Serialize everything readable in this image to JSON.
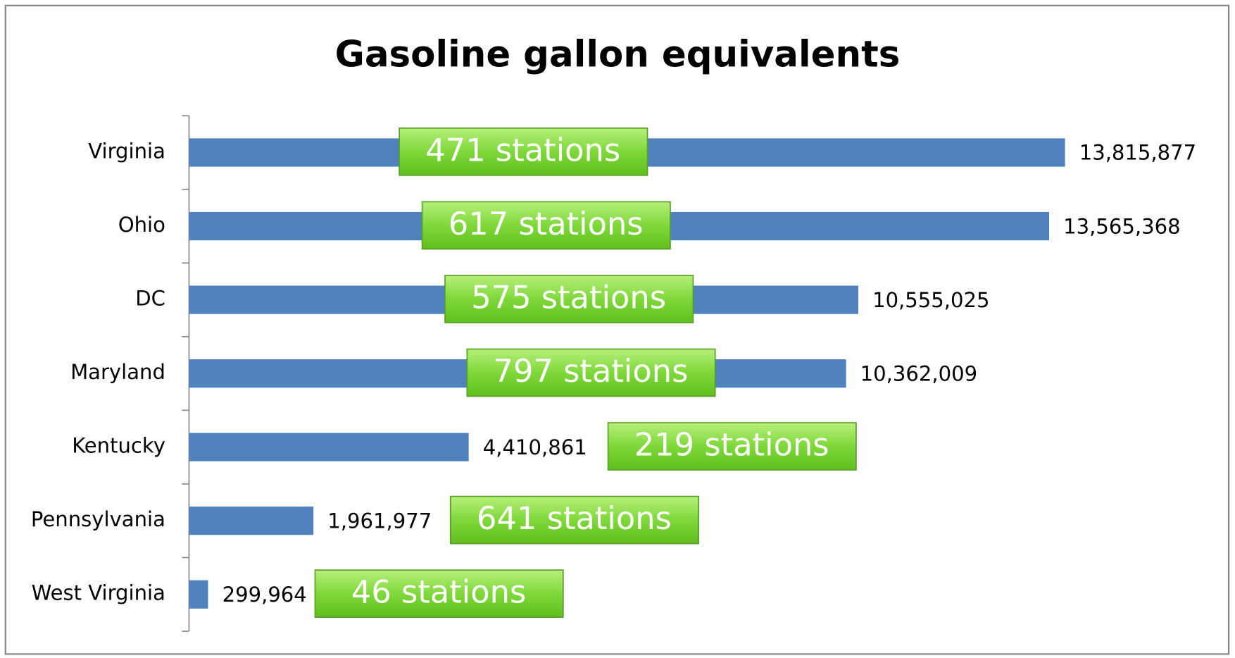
{
  "chart_data": {
    "type": "bar",
    "orientation": "horizontal",
    "title": "Gasoline gallon equivalents",
    "categories": [
      "Virginia",
      "Ohio",
      "DC",
      "Maryland",
      "Kentucky",
      "Pennsylvania",
      "West Virginia"
    ],
    "values": [
      13815877,
      13565368,
      10555025,
      10362009,
      4410861,
      1961977,
      299964
    ],
    "value_labels": [
      "13,815,877",
      "13,565,368",
      "10,555,025",
      "10,362,009",
      "4,410,861",
      "1,961,977",
      "299,964"
    ],
    "annotations": [
      "471 stations",
      "617 stations",
      "575 stations",
      "797 stations",
      "219 stations",
      "641 stations",
      "46 stations"
    ],
    "color": "#4f81bd",
    "xlim": [
      0,
      16000000
    ]
  }
}
